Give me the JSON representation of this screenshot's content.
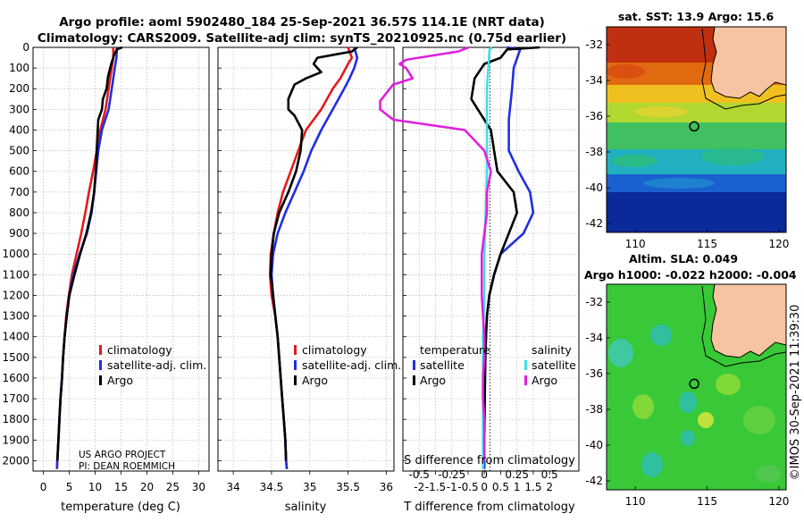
{
  "titles": {
    "line1": "Argo profile: aoml 5902480_184 25-Sep-2021 36.57S 114.1E (NRT data)",
    "line2": "Climatology: CARS2009. Satellite-adj clim: synTS_20210925.nc (0.75d earlier)"
  },
  "colors": {
    "climatology": "#e31a1c",
    "satellite_clim": "#1f2fe0",
    "argo": "#000000",
    "sat_diff_temp": "#1f2fe0",
    "sat_diff_sal": "#40e0e0",
    "argo_diff_sal": "#e020e0",
    "land": "#f6c4a0"
  },
  "depth_ticks": [
    "0",
    "100",
    "200",
    "300",
    "400",
    "500",
    "600",
    "700",
    "800",
    "900",
    "1000",
    "1100",
    "1200",
    "1300",
    "1400",
    "1500",
    "1600",
    "1700",
    "1800",
    "1900",
    "2000"
  ],
  "temp_panel": {
    "xlabel": "temperature (deg C)",
    "xticks": [
      "0",
      "5",
      "10",
      "15",
      "20",
      "25",
      "30"
    ],
    "legend": {
      "climatology": "climatology",
      "satellite": "satellite-adj. clim.",
      "argo": "Argo"
    },
    "credit1": "US ARGO PROJECT",
    "credit2": "PI: DEAN ROEMMICH"
  },
  "sal_panel": {
    "xlabel": "salinity",
    "xticks": [
      "34",
      "34.5",
      "35",
      "35.5",
      "36"
    ],
    "legend": {
      "climatology": "climatology",
      "satellite": "satellite-adj. clim.",
      "argo": "Argo"
    }
  },
  "diff_panel": {
    "xlabel": "T difference from climatology",
    "s_label": "S difference from climatology",
    "xticks": [
      "-2",
      "-1.5",
      "-1",
      "-0.5",
      "0",
      "0.5",
      "1",
      "1.5",
      "2"
    ],
    "s_ticks": [
      "-0.5",
      "-0.25",
      "0",
      "0.25",
      "0.5"
    ],
    "legend": {
      "temp_head": "temperature",
      "sal_head": "salinity",
      "satellite": "satellite",
      "argo": "Argo"
    }
  },
  "sst_map": {
    "title": "sat. SST: 13.9 Argo: 15.6",
    "lat_ticks": [
      "-32",
      "-34",
      "-36",
      "-38",
      "-40",
      "-42"
    ],
    "lon_ticks": [
      "110",
      "115",
      "120"
    ]
  },
  "sla_map": {
    "title1": "Altim. SLA: 0.049",
    "title2": "Argo h1000: -0.022 h2000: -0.004",
    "lat_ticks": [
      "-32",
      "-34",
      "-36",
      "-38",
      "-40",
      "-42"
    ],
    "lon_ticks": [
      "110",
      "115",
      "120"
    ]
  },
  "watermark": "©IMOS 30-Sep-2021 11:39:30",
  "chart_data": [
    {
      "type": "line",
      "name": "temperature",
      "xlabel": "temperature (deg C)",
      "ylabel": "",
      "xlim": [
        -2,
        32
      ],
      "ylim": [
        2050,
        0
      ],
      "y_reversed": true,
      "series": [
        {
          "name": "climatology",
          "points": [
            [
              13.5,
              0
            ],
            [
              13.5,
              50
            ],
            [
              13.2,
              100
            ],
            [
              12.9,
              150
            ],
            [
              12.6,
              200
            ],
            [
              12,
              300
            ],
            [
              11,
              400
            ],
            [
              10.3,
              500
            ],
            [
              9.6,
              600
            ],
            [
              8.8,
              700
            ],
            [
              8.1,
              800
            ],
            [
              7.3,
              900
            ],
            [
              6.4,
              1000
            ],
            [
              5.5,
              1100
            ],
            [
              4.9,
              1200
            ],
            [
              4.4,
              1300
            ],
            [
              4.1,
              1400
            ],
            [
              3.8,
              1500
            ],
            [
              3.6,
              1600
            ],
            [
              3.3,
              1700
            ],
            [
              3.1,
              1800
            ],
            [
              2.9,
              1900
            ],
            [
              2.7,
              2000
            ],
            [
              2.6,
              2040
            ]
          ]
        },
        {
          "name": "satellite-adj. clim.",
          "points": [
            [
              14.2,
              0
            ],
            [
              14.1,
              50
            ],
            [
              13.8,
              100
            ],
            [
              13.5,
              150
            ],
            [
              13.2,
              200
            ],
            [
              12.6,
              300
            ],
            [
              11.3,
              400
            ],
            [
              10.6,
              500
            ],
            [
              10.2,
              600
            ],
            [
              9.8,
              700
            ],
            [
              9.3,
              800
            ],
            [
              8.4,
              900
            ],
            [
              7,
              1000
            ],
            [
              5.8,
              1100
            ],
            [
              5,
              1200
            ],
            [
              4.5,
              1300
            ],
            [
              4.1,
              1400
            ],
            [
              3.8,
              1500
            ],
            [
              3.6,
              1600
            ],
            [
              3.3,
              1700
            ],
            [
              3.1,
              1800
            ],
            [
              2.9,
              1900
            ],
            [
              2.7,
              2000
            ],
            [
              2.6,
              2040
            ]
          ]
        },
        {
          "name": "Argo",
          "points": [
            [
              15.2,
              0
            ],
            [
              14.2,
              10
            ],
            [
              13.6,
              40
            ],
            [
              13.1,
              80
            ],
            [
              12.5,
              140
            ],
            [
              12.2,
              200
            ],
            [
              11.5,
              250
            ],
            [
              11.3,
              300
            ],
            [
              10.6,
              350
            ],
            [
              10.5,
              400
            ],
            [
              10.3,
              500
            ],
            [
              10.1,
              600
            ],
            [
              9.8,
              700
            ],
            [
              9.2,
              800
            ],
            [
              8.3,
              900
            ],
            [
              7.1,
              1000
            ],
            [
              6,
              1100
            ],
            [
              5,
              1200
            ],
            [
              4.5,
              1300
            ],
            [
              4.1,
              1400
            ],
            [
              3.8,
              1500
            ],
            [
              3.6,
              1600
            ],
            [
              3.3,
              1700
            ],
            [
              3.1,
              1800
            ],
            [
              2.9,
              1900
            ],
            [
              2.7,
              2000
            ]
          ]
        }
      ]
    },
    {
      "type": "line",
      "name": "salinity",
      "xlabel": "salinity",
      "ylabel": "",
      "xlim": [
        33.8,
        36.1
      ],
      "ylim": [
        2050,
        0
      ],
      "y_reversed": true,
      "series": [
        {
          "name": "climatology",
          "points": [
            [
              35.5,
              0
            ],
            [
              35.55,
              50
            ],
            [
              35.5,
              80
            ],
            [
              35.4,
              150
            ],
            [
              35.3,
              200
            ],
            [
              35.15,
              300
            ],
            [
              34.95,
              400
            ],
            [
              34.85,
              500
            ],
            [
              34.75,
              600
            ],
            [
              34.65,
              700
            ],
            [
              34.58,
              800
            ],
            [
              34.53,
              900
            ],
            [
              34.49,
              1000
            ],
            [
              34.48,
              1100
            ],
            [
              34.5,
              1200
            ],
            [
              34.55,
              1300
            ],
            [
              34.58,
              1400
            ],
            [
              34.6,
              1500
            ],
            [
              34.62,
              1600
            ],
            [
              34.64,
              1700
            ],
            [
              34.66,
              1800
            ],
            [
              34.68,
              1900
            ],
            [
              34.69,
              2000
            ],
            [
              34.7,
              2040
            ]
          ]
        },
        {
          "name": "satellite-adj. clim.",
          "points": [
            [
              35.58,
              0
            ],
            [
              35.62,
              50
            ],
            [
              35.58,
              100
            ],
            [
              35.52,
              150
            ],
            [
              35.45,
              200
            ],
            [
              35.3,
              300
            ],
            [
              35.15,
              400
            ],
            [
              35.02,
              500
            ],
            [
              34.92,
              600
            ],
            [
              34.8,
              700
            ],
            [
              34.68,
              800
            ],
            [
              34.58,
              900
            ],
            [
              34.52,
              1000
            ],
            [
              34.5,
              1100
            ],
            [
              34.52,
              1200
            ],
            [
              34.55,
              1300
            ],
            [
              34.58,
              1400
            ],
            [
              34.6,
              1500
            ],
            [
              34.62,
              1600
            ],
            [
              34.64,
              1700
            ],
            [
              34.66,
              1800
            ],
            [
              34.68,
              1900
            ],
            [
              34.69,
              2000
            ],
            [
              34.7,
              2040
            ]
          ]
        },
        {
          "name": "Argo",
          "points": [
            [
              35.62,
              0
            ],
            [
              35.55,
              20
            ],
            [
              35.1,
              50
            ],
            [
              35.05,
              80
            ],
            [
              35.15,
              120
            ],
            [
              34.95,
              150
            ],
            [
              34.8,
              180
            ],
            [
              34.72,
              250
            ],
            [
              34.72,
              300
            ],
            [
              34.8,
              330
            ],
            [
              34.9,
              400
            ],
            [
              34.88,
              500
            ],
            [
              34.82,
              600
            ],
            [
              34.72,
              700
            ],
            [
              34.6,
              800
            ],
            [
              34.53,
              900
            ],
            [
              34.5,
              1000
            ],
            [
              34.49,
              1100
            ],
            [
              34.52,
              1200
            ],
            [
              34.55,
              1300
            ],
            [
              34.58,
              1400
            ],
            [
              34.6,
              1500
            ],
            [
              34.62,
              1600
            ],
            [
              34.64,
              1700
            ],
            [
              34.66,
              1800
            ],
            [
              34.68,
              1900
            ],
            [
              34.69,
              2000
            ]
          ]
        }
      ]
    },
    {
      "type": "line",
      "name": "difference from climatology",
      "xlabel": "T difference from climatology",
      "ylabel": "",
      "xlim": [
        -2.5,
        2.9
      ],
      "ylim": [
        2050,
        0
      ],
      "y_reversed": true,
      "series": [
        {
          "name": "temperature satellite",
          "points": [
            [
              0.7,
              0
            ],
            [
              1.1,
              10
            ],
            [
              0.9,
              100
            ],
            [
              0.85,
              200
            ],
            [
              0.75,
              350
            ],
            [
              0.75,
              500
            ],
            [
              1.05,
              600
            ],
            [
              1.4,
              700
            ],
            [
              1.5,
              800
            ],
            [
              1.2,
              900
            ],
            [
              0.5,
              1000
            ],
            [
              0.3,
              1100
            ],
            [
              0.15,
              1200
            ],
            [
              0.08,
              1300
            ],
            [
              0.05,
              1400
            ],
            [
              0.03,
              1500
            ],
            [
              0.02,
              1600
            ],
            [
              0.01,
              1700
            ],
            [
              0.01,
              1800
            ],
            [
              0,
              1900
            ],
            [
              0,
              2000
            ],
            [
              0,
              2040
            ]
          ]
        },
        {
          "name": "temperature Argo",
          "points": [
            [
              1.7,
              0
            ],
            [
              0.7,
              10
            ],
            [
              0.5,
              50
            ],
            [
              0,
              80
            ],
            [
              -0.3,
              150
            ],
            [
              -0.4,
              250
            ],
            [
              -0.2,
              300
            ],
            [
              0.2,
              400
            ],
            [
              0.3,
              500
            ],
            [
              0.4,
              600
            ],
            [
              0.9,
              700
            ],
            [
              1,
              800
            ],
            [
              0.8,
              880
            ],
            [
              0.5,
              1000
            ],
            [
              0.3,
              1100
            ],
            [
              0.15,
              1200
            ],
            [
              0.08,
              1300
            ],
            [
              0.05,
              1400
            ],
            [
              0.03,
              1500
            ],
            [
              0.02,
              1600
            ],
            [
              0.01,
              1700
            ],
            [
              0,
              1800
            ],
            [
              0,
              1900
            ],
            [
              0,
              2000
            ]
          ]
        },
        {
          "name": "salinity satellite",
          "points": [
            [
              0.06,
              0
            ],
            [
              0.04,
              10
            ],
            [
              0.03,
              100
            ],
            [
              0.02,
              200
            ],
            [
              0.02,
              400
            ],
            [
              0.02,
              600
            ],
            [
              0.01,
              800
            ],
            [
              0,
              1000
            ],
            [
              0,
              1200
            ],
            [
              -0.01,
              1400
            ],
            [
              -0.01,
              1600
            ],
            [
              -0.01,
              1800
            ],
            [
              -0.01,
              2000
            ],
            [
              -0.01,
              2040
            ]
          ]
        },
        {
          "name": "salinity Argo",
          "points": [
            [
              -0.12,
              0
            ],
            [
              -0.2,
              20
            ],
            [
              -0.6,
              60
            ],
            [
              -0.65,
              80
            ],
            [
              -0.6,
              100
            ],
            [
              -0.55,
              150
            ],
            [
              -0.7,
              180
            ],
            [
              -0.8,
              260
            ],
            [
              -0.8,
              300
            ],
            [
              -0.7,
              350
            ],
            [
              -0.15,
              400
            ],
            [
              0,
              500
            ],
            [
              0.05,
              600
            ],
            [
              0.02,
              700
            ],
            [
              0.02,
              800
            ],
            [
              0,
              900
            ],
            [
              -0.02,
              1000
            ],
            [
              -0.02,
              1100
            ],
            [
              -0.02,
              1200
            ],
            [
              -0.01,
              1300
            ],
            [
              0,
              1400
            ],
            [
              0,
              1500
            ],
            [
              -0.01,
              1600
            ],
            [
              -0.01,
              1700
            ],
            [
              0,
              1800
            ],
            [
              0,
              1900
            ],
            [
              0,
              2000
            ]
          ]
        }
      ]
    }
  ]
}
